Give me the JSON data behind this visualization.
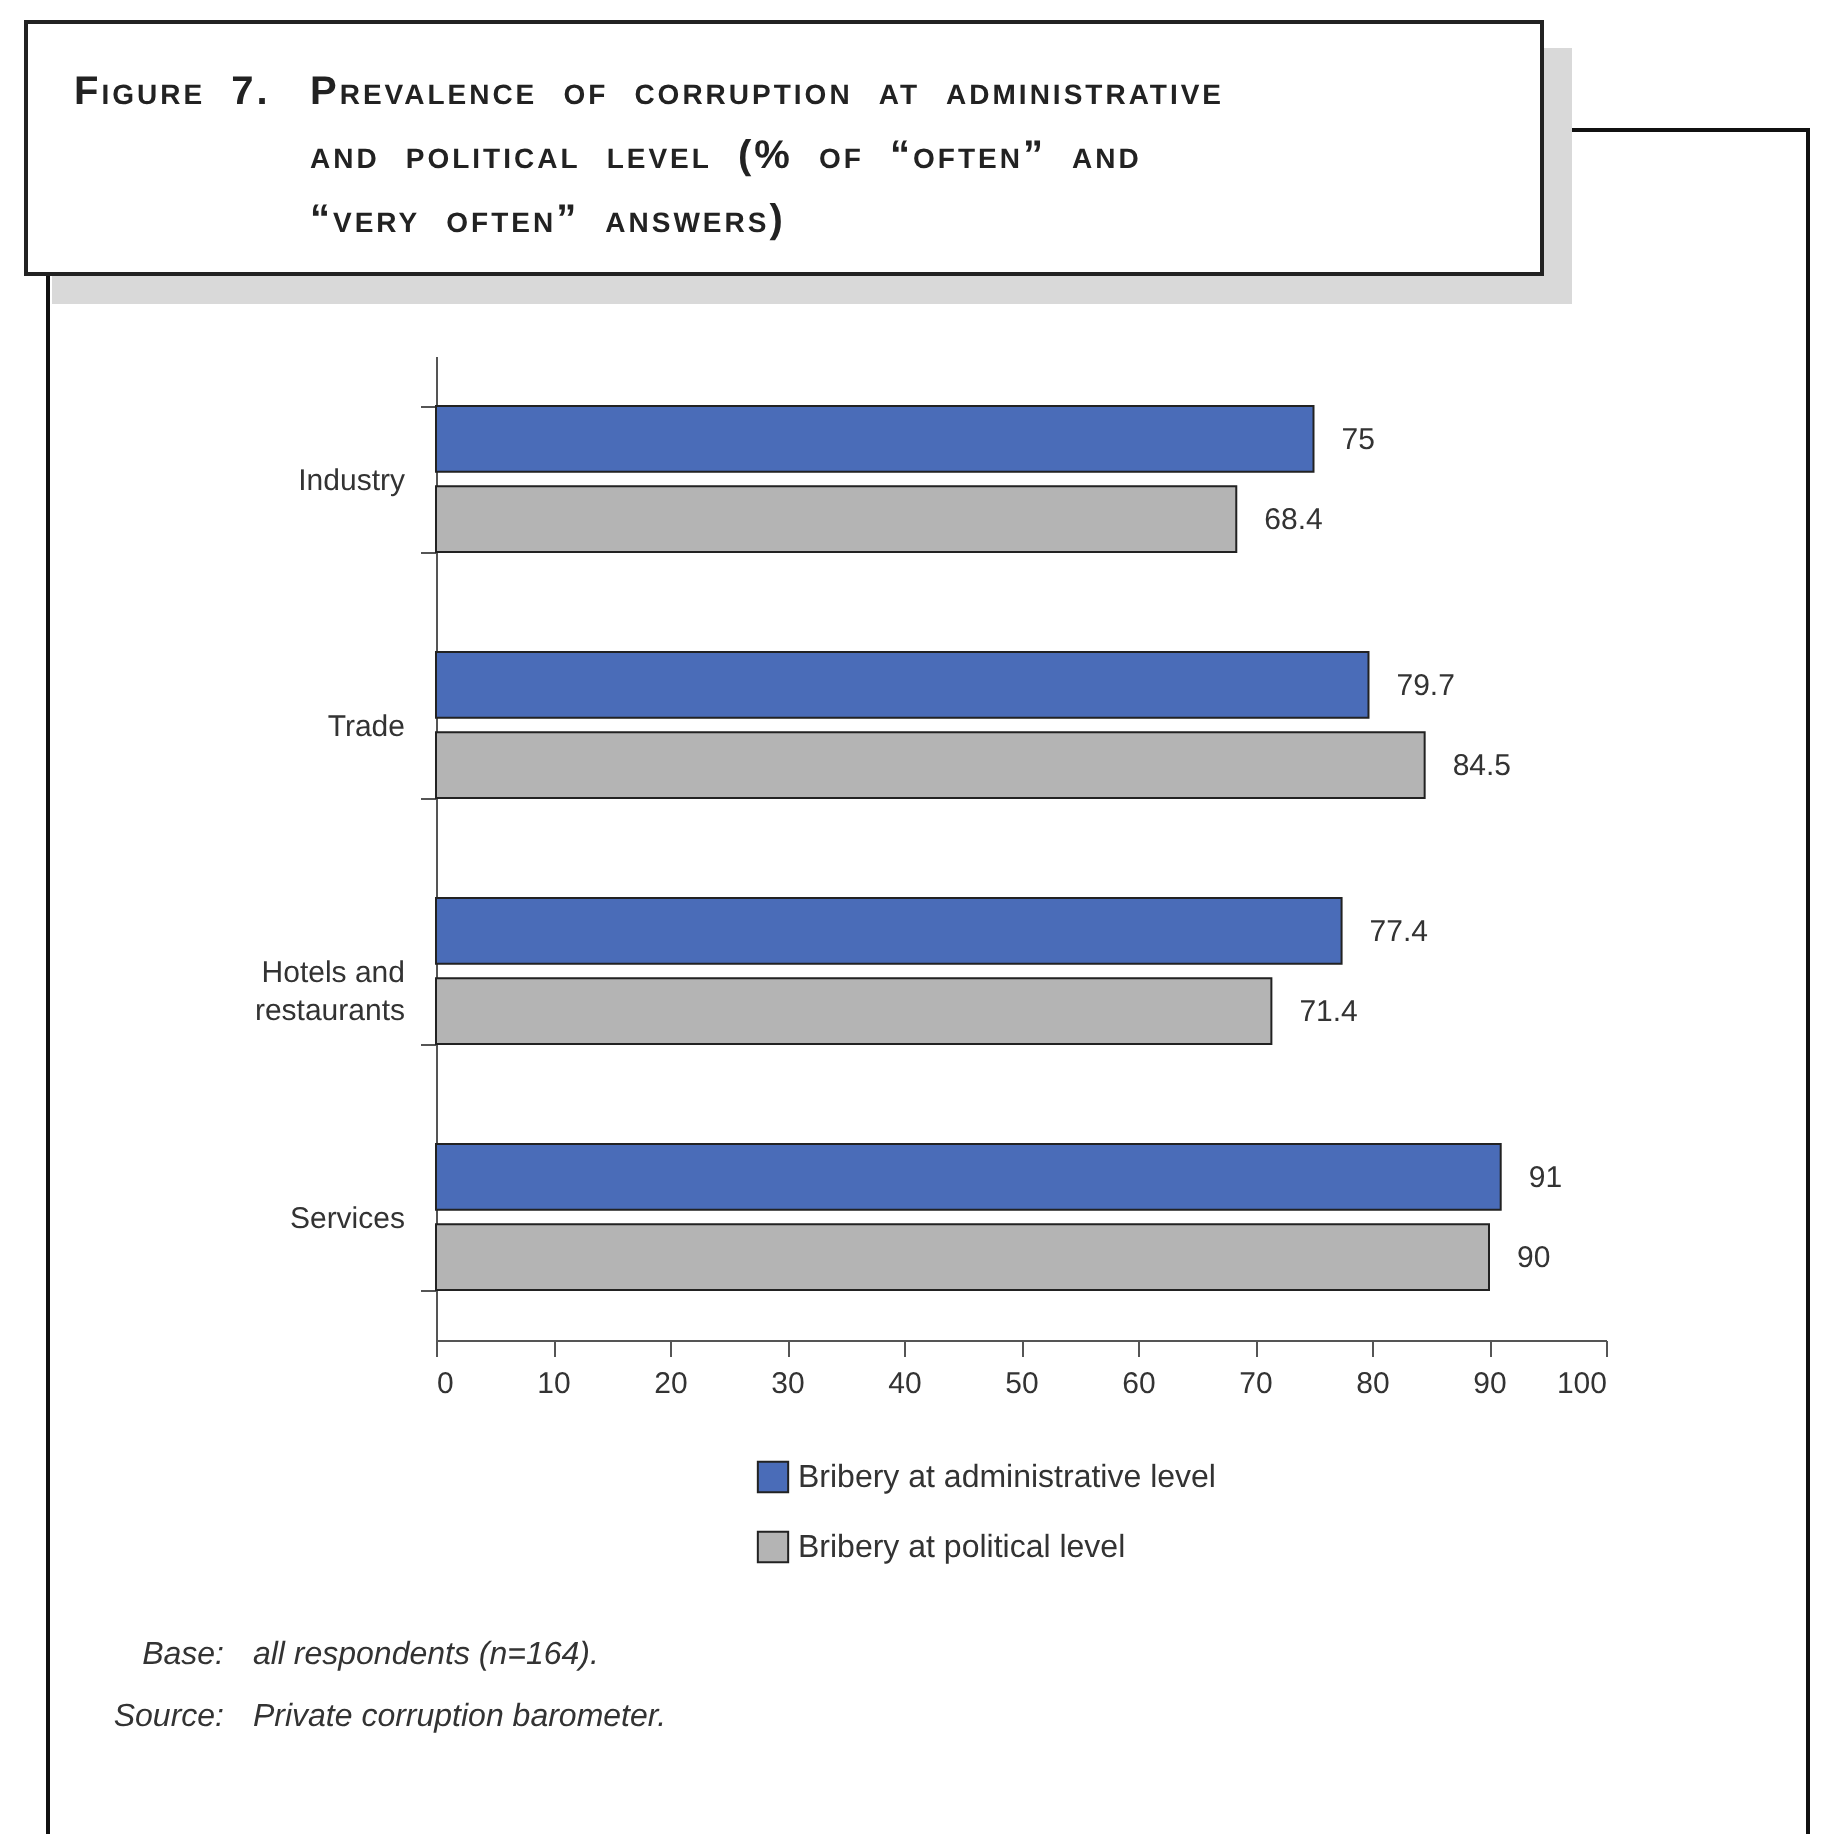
{
  "chart_data": {
    "type": "bar",
    "orientation": "horizontal",
    "title": "Figure 7. Prevalence of corruption at administrative and political level (% of “often” and “very often” answers)",
    "categories": [
      "Industry",
      "Trade",
      "Hotels and restaurants",
      "Services"
    ],
    "series": [
      {
        "name": "Bribery at administrative level",
        "color": "#4a6cb8",
        "values": [
          75,
          79.7,
          77.4,
          91
        ]
      },
      {
        "name": "Bribery at political level",
        "color": "#b4b4b4",
        "values": [
          68.4,
          84.5,
          71.4,
          90
        ]
      }
    ],
    "xlim": [
      0,
      100
    ],
    "xticks": [
      0,
      10,
      20,
      30,
      40,
      50,
      60,
      70,
      80,
      90,
      100
    ],
    "data_labels": true,
    "legend": "bottom",
    "annotations": [
      "Base: all respondents (n=164).",
      "Source: Private corruption barometer."
    ]
  }
}
